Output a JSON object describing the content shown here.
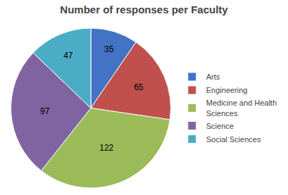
{
  "chart_data": {
    "type": "pie",
    "title": "Number of responses per Faculty",
    "categories": [
      "Arts",
      "Engineering",
      "Medicine and Health\nSciences",
      "Science",
      "Social Sciences"
    ],
    "values": [
      35,
      65,
      122,
      97,
      47
    ],
    "colors": [
      "#4472C4",
      "#C0504D",
      "#9BBB59",
      "#8064A2",
      "#4BACC6"
    ],
    "data_labels": true,
    "legend": "right"
  }
}
